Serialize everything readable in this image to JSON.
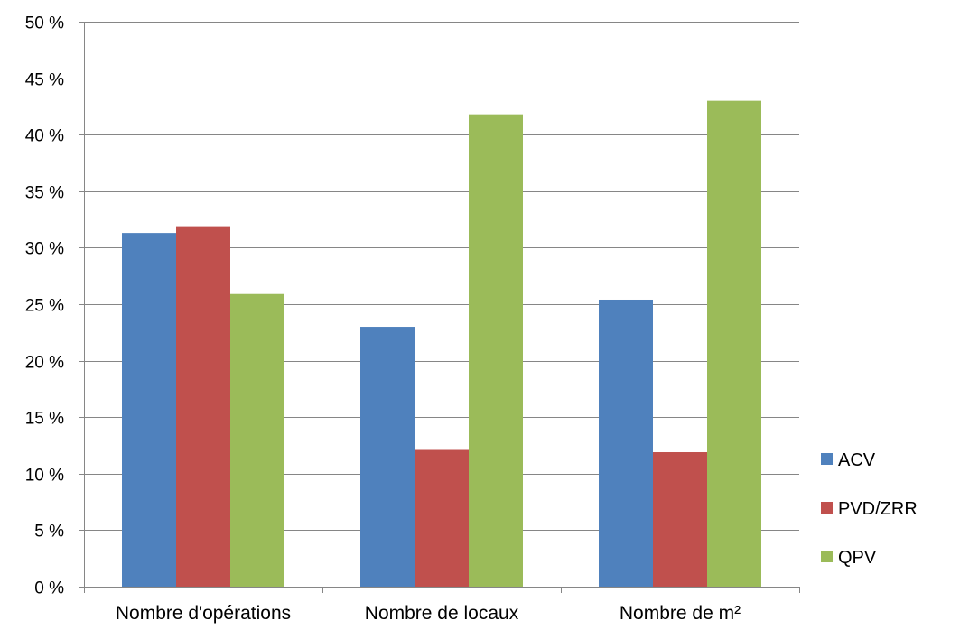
{
  "chart_data": {
    "type": "bar",
    "categories": [
      "Nombre d'opérations",
      "Nombre de locaux",
      "Nombre de m²"
    ],
    "series": [
      {
        "name": "ACV",
        "values": [
          31.3,
          23.0,
          25.4
        ],
        "color": "#4F81BD"
      },
      {
        "name": "PVD/ZRR",
        "values": [
          31.9,
          12.1,
          11.9
        ],
        "color": "#C0504D"
      },
      {
        "name": "QPV",
        "values": [
          25.9,
          41.8,
          43.0
        ],
        "color": "#9BBB59"
      }
    ],
    "ylim": [
      0,
      50
    ],
    "yticks": [
      0,
      5,
      10,
      15,
      20,
      25,
      30,
      35,
      40,
      45,
      50
    ],
    "ytick_labels": [
      "0 %",
      "5 %",
      "10 %",
      "15 %",
      "20 %",
      "25 %",
      "30 %",
      "35 %",
      "40 %",
      "45 %",
      "50 %"
    ],
    "grid": true,
    "legend_position": "right"
  }
}
